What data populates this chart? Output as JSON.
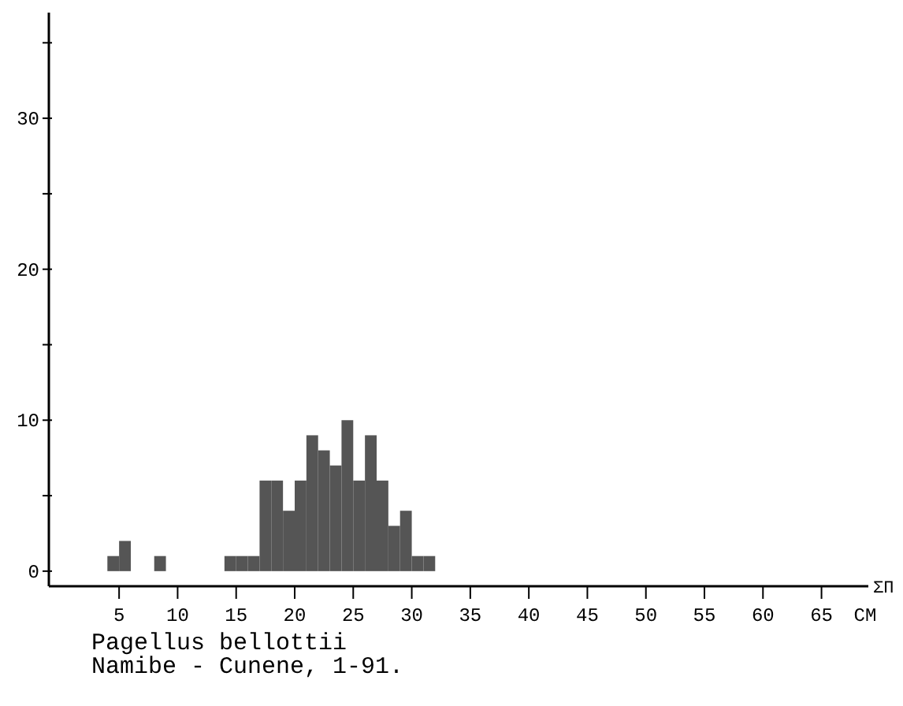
{
  "chart_data": {
    "type": "histogram",
    "title": "Pagellus bellottii",
    "subtitle": "Namibe - Cunene, 1-91.",
    "xlabel": "CM",
    "annotations": [
      "ΣΠ"
    ],
    "bins": [
      4,
      5,
      6,
      7,
      8,
      9,
      10,
      11,
      12,
      13,
      14,
      15,
      16,
      17,
      18,
      19,
      20,
      21,
      22,
      23,
      24,
      25,
      26,
      27,
      28,
      29,
      30,
      31,
      32
    ],
    "values": [
      1,
      2,
      0,
      0,
      1,
      0,
      0,
      0,
      0,
      0,
      1,
      1,
      1,
      6,
      6,
      4,
      6,
      9,
      8,
      7,
      10,
      6,
      9,
      6,
      3,
      4,
      1,
      1
    ],
    "color": "#555555",
    "xlim": [
      -1,
      69
    ],
    "xticks": [
      5,
      10,
      15,
      20,
      25,
      30,
      35,
      40,
      45,
      50,
      55,
      60,
      65
    ],
    "ylim": [
      -1,
      37
    ],
    "yticks": [
      0,
      {
        "value": 5,
        "label": null
      },
      10,
      {
        "value": 15,
        "label": null
      },
      20,
      {
        "value": 25,
        "label": null
      },
      30,
      {
        "value": 35,
        "label": null
      }
    ],
    "grid": false
  }
}
